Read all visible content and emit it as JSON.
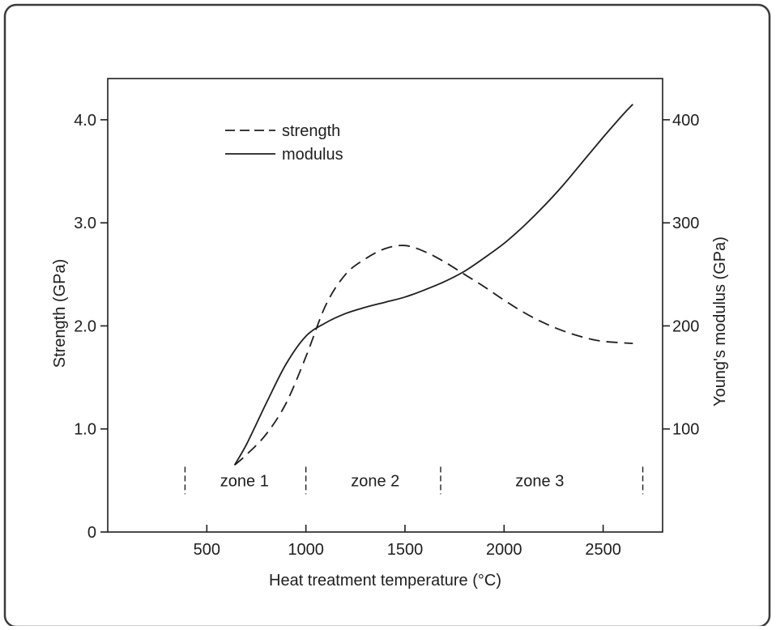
{
  "chart_data": {
    "type": "line",
    "title": "",
    "xlabel": "Heat treatment temperature (°C)",
    "ylabel": "Strength (GPa)",
    "y2label": "Young's modulus (GPa)",
    "xlim": [
      0,
      2800
    ],
    "ylim": [
      0,
      4.4
    ],
    "y2lim": [
      0,
      440
    ],
    "x_ticks": [
      "500",
      "1000",
      "1500",
      "2000",
      "2500"
    ],
    "x_tick_values": [
      500,
      1000,
      1500,
      2000,
      2500
    ],
    "y_ticks": [
      "0",
      "1.0",
      "2.0",
      "3.0",
      "4.0"
    ],
    "y_tick_values": [
      0,
      1.0,
      2.0,
      3.0,
      4.0
    ],
    "y2_ticks": [
      "100",
      "200",
      "300",
      "400"
    ],
    "y2_tick_values": [
      100,
      200,
      300,
      400
    ],
    "legend": {
      "position": "top-left",
      "entries": [
        "strength",
        "modulus"
      ]
    },
    "series": [
      {
        "name": "strength",
        "axis": "left",
        "style": "dashed",
        "x": [
          640,
          700,
          800,
          900,
          1000,
          1100,
          1200,
          1300,
          1400,
          1500,
          1600,
          1700,
          1800,
          1900,
          2000,
          2100,
          2200,
          2300,
          2400,
          2500,
          2650
        ],
        "y": [
          0.65,
          0.75,
          0.95,
          1.25,
          1.7,
          2.2,
          2.5,
          2.65,
          2.75,
          2.78,
          2.72,
          2.62,
          2.5,
          2.38,
          2.25,
          2.13,
          2.03,
          1.95,
          1.89,
          1.85,
          1.83
        ]
      },
      {
        "name": "modulus",
        "axis": "right",
        "style": "solid",
        "x": [
          640,
          700,
          800,
          900,
          1000,
          1100,
          1200,
          1300,
          1400,
          1500,
          1600,
          1700,
          1800,
          1900,
          2000,
          2100,
          2200,
          2300,
          2400,
          2500,
          2600,
          2650
        ],
        "y": [
          65,
          85,
          125,
          163,
          190,
          203,
          212,
          218,
          223,
          228,
          235,
          243,
          253,
          266,
          280,
          297,
          316,
          337,
          360,
          383,
          405,
          415
        ]
      }
    ],
    "zones": [
      {
        "label": "zone 1",
        "x": 690
      },
      {
        "label": "zone 2",
        "x": 1350
      },
      {
        "label": "zone 3",
        "x": 2180
      }
    ],
    "zone_boundaries": [
      390,
      1000,
      1680,
      2700
    ],
    "zone_level": 0.5
  }
}
